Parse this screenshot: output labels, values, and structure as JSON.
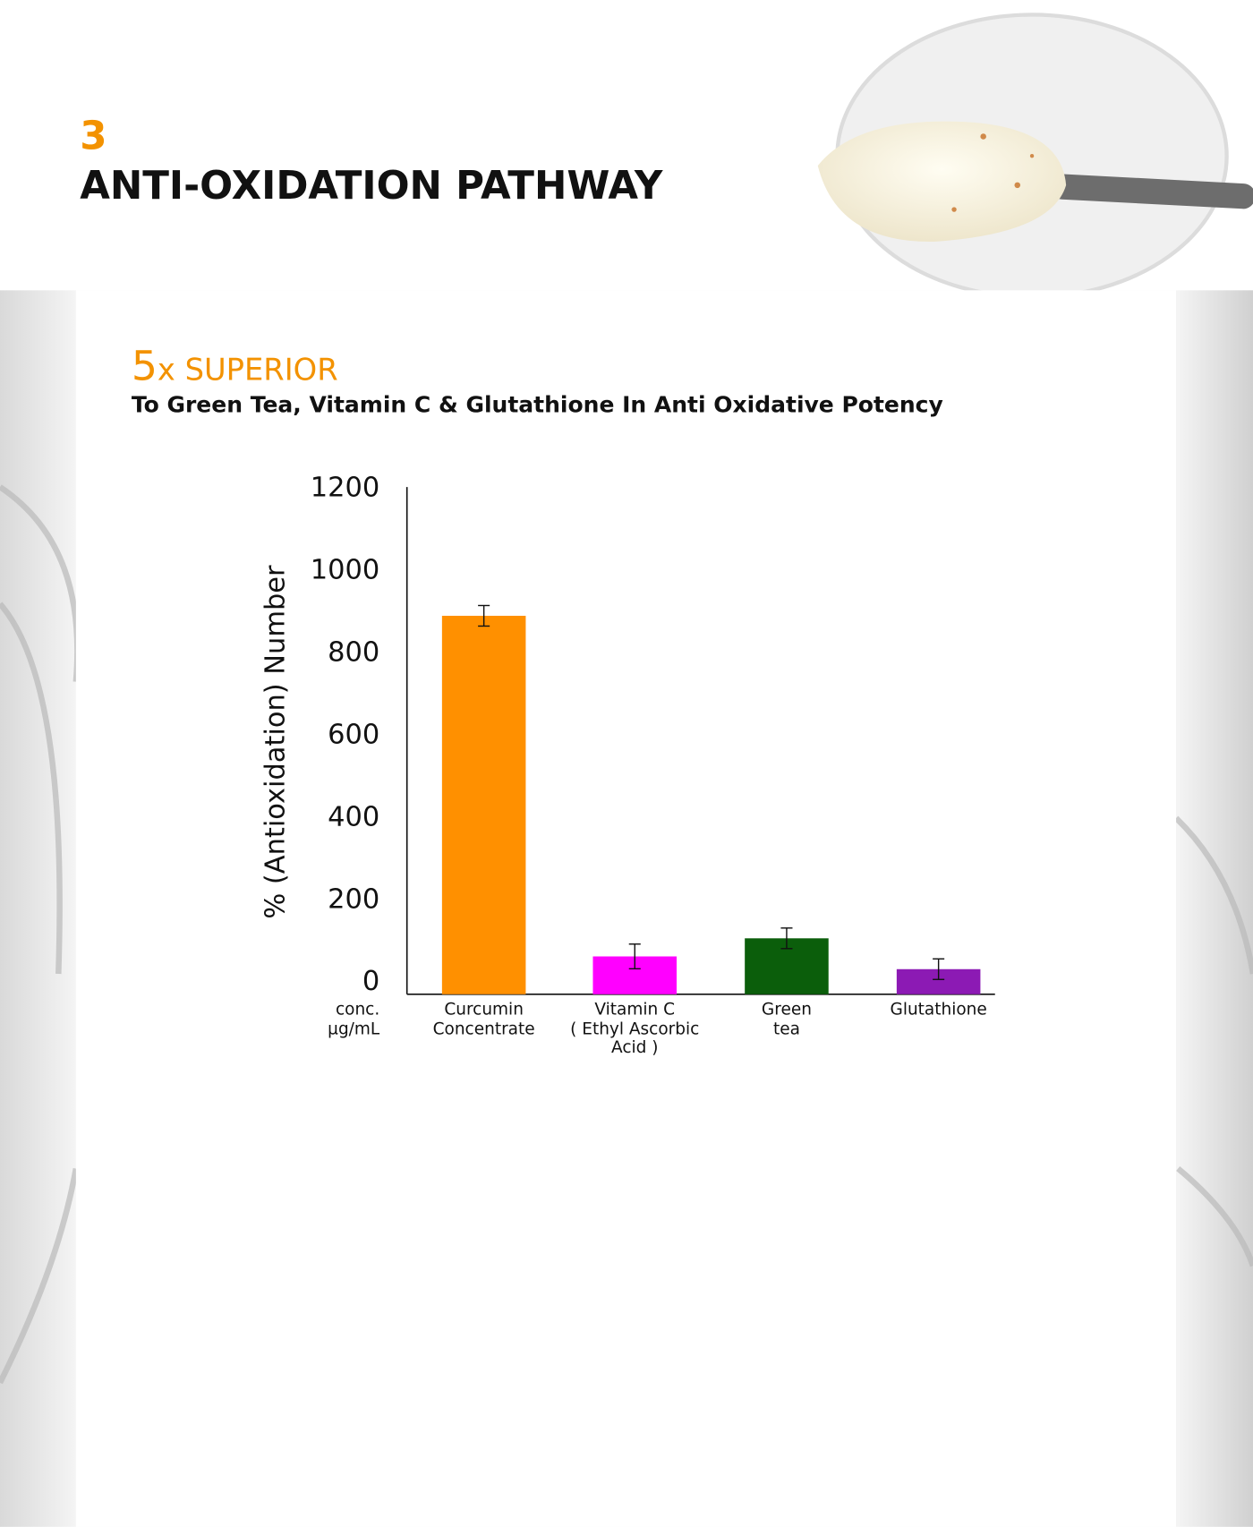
{
  "section_number": "3",
  "title": "ANTI-OXIDATION PATHWAY",
  "headline": {
    "number": "5",
    "text": "x SUPERIOR"
  },
  "subtitle": "To Green Tea, Vitamin C & Glutathione In Anti Oxidative Potency",
  "chart_data": {
    "type": "bar",
    "ylabel": "%  (Antioxidation) Number",
    "xlabel": "conc.\nµg/mL",
    "categories": [
      "Curcumin\nConcentrate",
      "Vitamin C\n( Ethyl Ascorbic\nAcid )",
      "Green\ntea",
      "Glutathione"
    ],
    "values": [
      920,
      92,
      136,
      61
    ],
    "errors": [
      25,
      30,
      25,
      25
    ],
    "colors": [
      "#ff9000",
      "#ff00ff",
      "#0b5e0b",
      "#8c1ab4"
    ],
    "ylim": [
      0,
      1200
    ],
    "yticks": [
      0,
      200,
      400,
      600,
      800,
      1000,
      1200
    ],
    "grid": false
  }
}
